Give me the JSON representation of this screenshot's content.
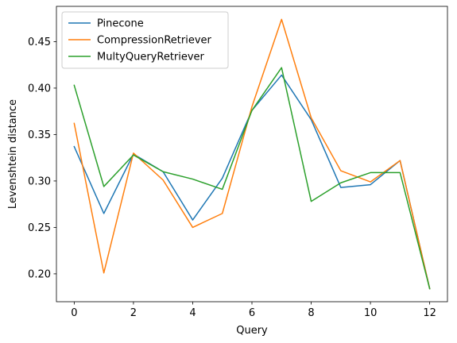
{
  "chart_data": {
    "type": "line",
    "title": "",
    "xlabel": "Query",
    "ylabel": "Levenshtein distance",
    "x": [
      0,
      1,
      2,
      3,
      4,
      5,
      6,
      7,
      8,
      9,
      10,
      11,
      12
    ],
    "xlim": [
      -0.6,
      12.6
    ],
    "ylim": [
      0.17,
      0.488
    ],
    "xticks": [
      0,
      2,
      4,
      6,
      8,
      10,
      12
    ],
    "xtick_labels": [
      "0",
      "2",
      "4",
      "6",
      "8",
      "10",
      "12"
    ],
    "yticks": [
      0.2,
      0.25,
      0.3,
      0.35,
      0.4,
      0.45
    ],
    "ytick_labels": [
      "0.20",
      "0.25",
      "0.30",
      "0.35",
      "0.40",
      "0.45"
    ],
    "grid": false,
    "legend_position": "top-left",
    "series": [
      {
        "name": "Pinecone",
        "color": "#1f77b4",
        "values": [
          0.337,
          0.265,
          0.329,
          0.31,
          0.258,
          0.303,
          0.376,
          0.414,
          0.366,
          0.293,
          0.296,
          0.322,
          0.184
        ]
      },
      {
        "name": "CompressionRetriever",
        "color": "#ff7f0e",
        "values": [
          0.362,
          0.201,
          0.33,
          0.301,
          0.25,
          0.265,
          0.38,
          0.474,
          0.368,
          0.311,
          0.299,
          0.322,
          0.184
        ]
      },
      {
        "name": "MultyQueryRetriever",
        "color": "#2ca02c",
        "values": [
          0.403,
          0.294,
          0.328,
          0.31,
          0.302,
          0.291,
          0.376,
          0.422,
          0.278,
          0.298,
          0.309,
          0.309,
          0.184
        ]
      }
    ]
  }
}
